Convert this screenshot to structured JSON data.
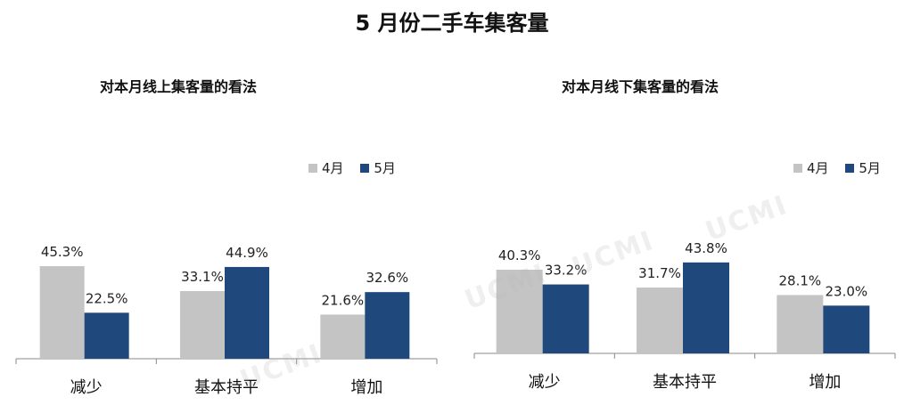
{
  "title": "5 月份二手车集客量",
  "watermark": "UCMI",
  "colors": {
    "apr": "#c4c4c4",
    "may": "#1f497d",
    "axis": "#888888"
  },
  "chart_data": [
    {
      "type": "bar",
      "title": "对本月线上集客量的看法",
      "categories": [
        "减少",
        "基本持平",
        "增加"
      ],
      "series": [
        {
          "name": "4月",
          "values": [
            45.3,
            33.1,
            21.6
          ]
        },
        {
          "name": "5月",
          "values": [
            22.5,
            44.9,
            32.6
          ]
        }
      ],
      "unit": "%",
      "ylim": [
        0,
        50
      ],
      "grid": false,
      "legend_position": "top-right"
    },
    {
      "type": "bar",
      "title": "对本月线下集客量的看法",
      "categories": [
        "减少",
        "基本持平",
        "增加"
      ],
      "series": [
        {
          "name": "4月",
          "values": [
            40.3,
            31.7,
            28.1
          ]
        },
        {
          "name": "5月",
          "values": [
            33.2,
            43.8,
            23.0
          ]
        }
      ],
      "unit": "%",
      "ylim": [
        0,
        50
      ],
      "grid": false,
      "legend_position": "top-right"
    }
  ]
}
